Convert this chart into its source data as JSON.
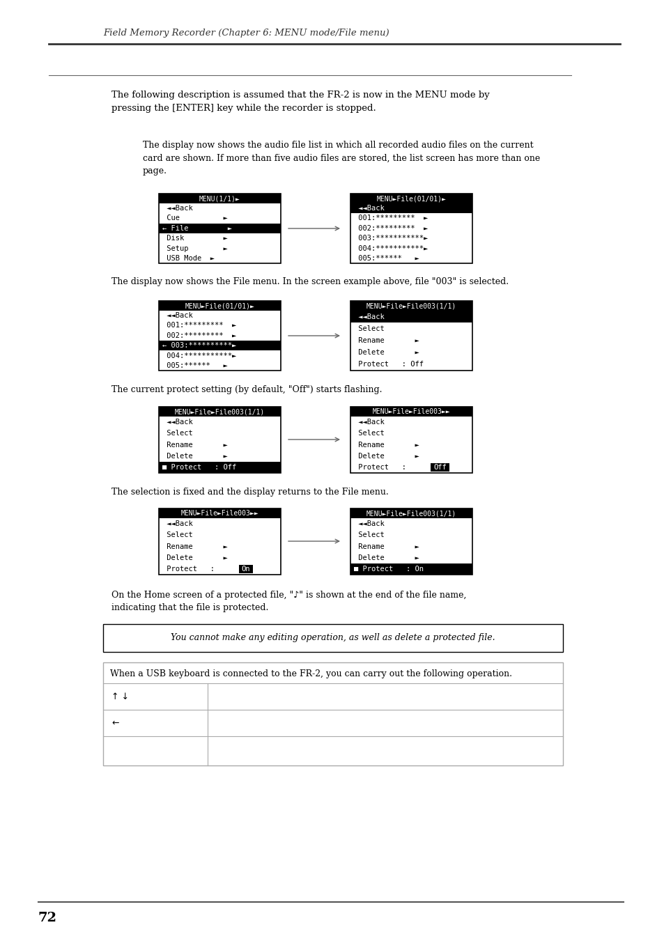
{
  "header_text": "Field Memory Recorder (Chapter 6: MENU mode/File menu)",
  "page_number": "72",
  "intro_text": "The following description is assumed that the FR-2 is now in the MENU mode by\npressing the [ENTER] key while the recorder is stopped.",
  "section1_text": "The display now shows the audio file list in which all recorded audio files on the current\ncard are shown. If more than five audio files are stored, the list screen has more than one\npage.",
  "section2_text": "The display now shows the File menu. In the screen example above, file \"003\" is selected.",
  "section3_text": "The current protect setting (by default, \"Off\") starts flashing.",
  "section4_text": "The selection is fixed and the display returns to the File menu.",
  "section5a_text": "On the Home screen of a protected file, \"♪\" is shown at the end of the file name,",
  "section5b_text": "indicating that the file is protected.",
  "note_italic": "You cannot make any editing operation, as well as delete a protected file.",
  "usb_note": "When a USB keyboard is connected to the FR-2, you can carry out the following operation.",
  "bg_color": "#ffffff",
  "text_color": "#000000",
  "header_color": "#333333"
}
